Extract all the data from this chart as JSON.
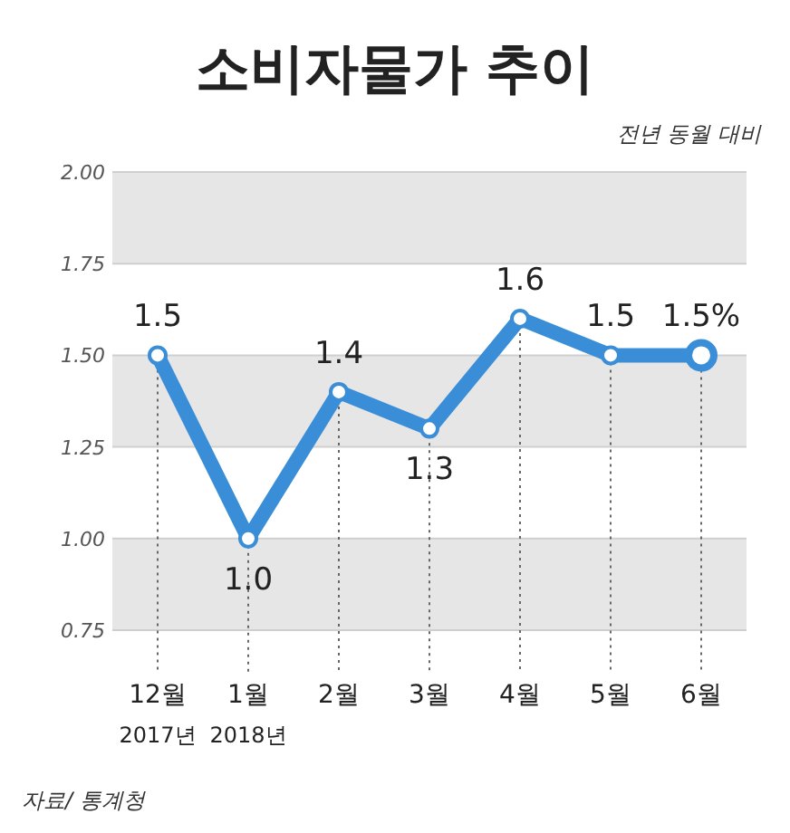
{
  "chart_data": {
    "type": "line",
    "title": "소비자물가 추이",
    "subtitle": "전년 동월 대비",
    "categories": [
      "12월\n2017년",
      "1월\n2018년",
      "2월",
      "3월",
      "4월",
      "5월",
      "6월"
    ],
    "series": [
      {
        "color": "#3a8ed8",
        "values": [
          1.5,
          1.0,
          1.4,
          1.3,
          1.6,
          1.5,
          1.5
        ]
      }
    ],
    "value_labels": [
      "1.5",
      "1.0",
      "1.4",
      "1.3",
      "1.6",
      "1.5",
      "1.5%"
    ],
    "ylim": [
      0.75,
      2.0
    ],
    "yticks": [
      0.75,
      {
        "value": 1,
        "label": "1.00"
      },
      1.25,
      {
        "value": 1.5,
        "label": "1.50"
      },
      1.75,
      {
        "value": 2,
        "label": "2.00"
      }
    ],
    "bands": [
      {
        "axis": "y",
        "from": 0.75,
        "to": 1.0,
        "color": "#e6e6e6"
      },
      {
        "axis": "y",
        "from": 1.25,
        "to": 1.5,
        "color": "#e6e6e6"
      },
      {
        "axis": "y",
        "from": 1.75,
        "to": 2.0,
        "color": "#e6e6e6"
      }
    ],
    "marker": "circle",
    "line_style": "solid",
    "grid": "y",
    "annotations": [
      "자료/ 통계청"
    ]
  }
}
